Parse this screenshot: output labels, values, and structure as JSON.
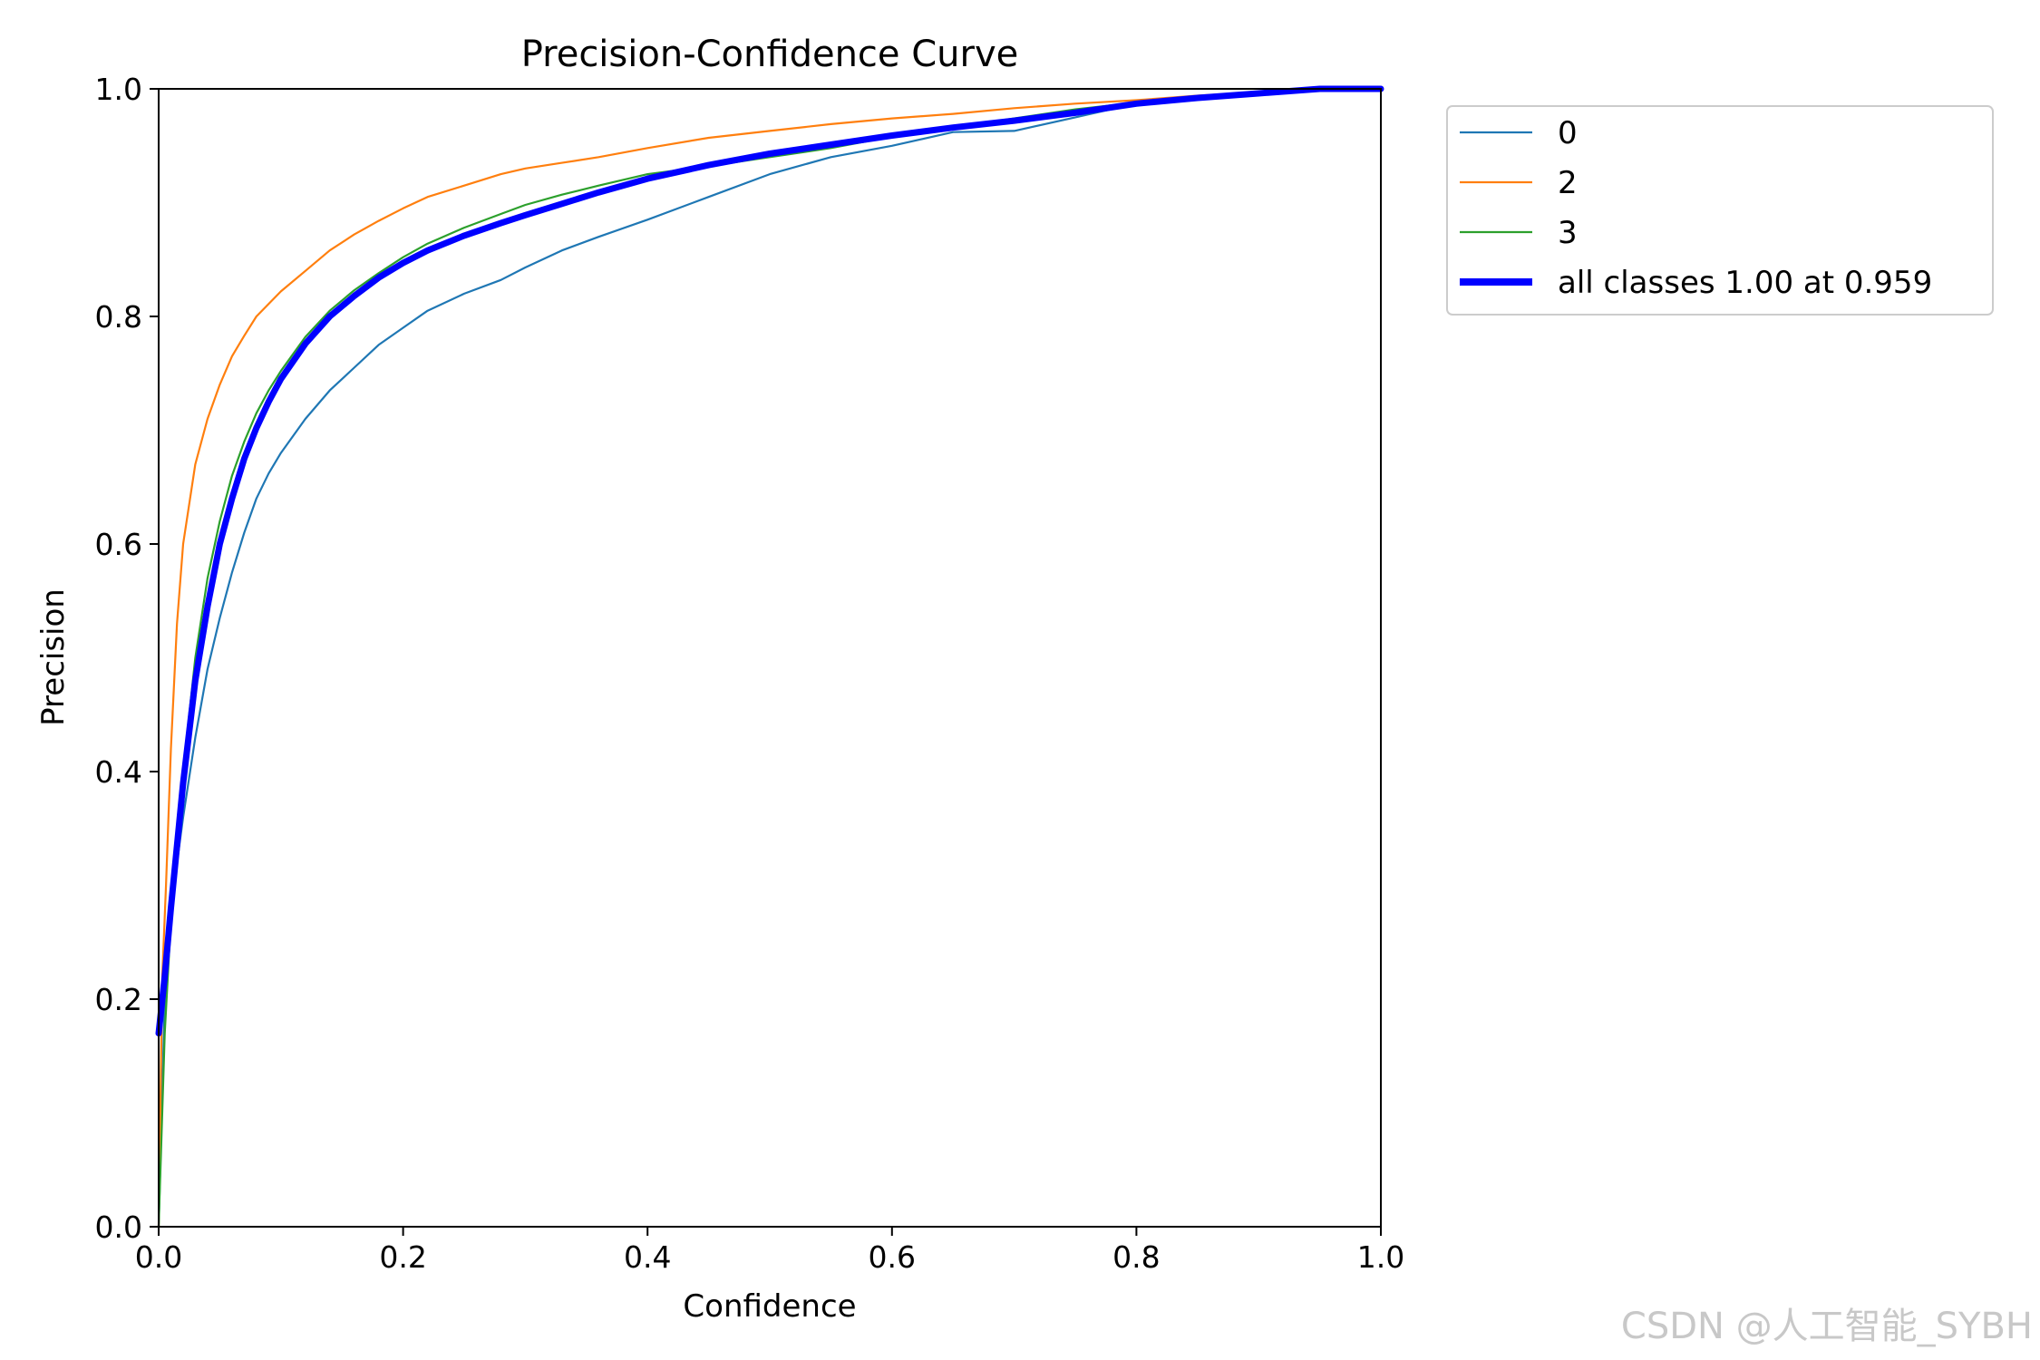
{
  "chart_data": {
    "type": "line",
    "title": "Precision-Confidence Curve",
    "xlabel": "Confidence",
    "ylabel": "Precision",
    "xlim": [
      0,
      1
    ],
    "ylim": [
      0,
      1
    ],
    "x_ticks": [
      "0.0",
      "0.2",
      "0.4",
      "0.6",
      "0.8",
      "1.0"
    ],
    "y_ticks": [
      "0.0",
      "0.2",
      "0.4",
      "0.6",
      "0.8",
      "1.0"
    ],
    "grid": false,
    "legend_position": "outside-top-right",
    "series": [
      {
        "name": "0",
        "color": "#1f77b4",
        "points": [
          [
            0.0,
            0.0
          ],
          [
            0.005,
            0.2
          ],
          [
            0.01,
            0.28
          ],
          [
            0.02,
            0.36
          ],
          [
            0.03,
            0.43
          ],
          [
            0.04,
            0.49
          ],
          [
            0.05,
            0.535
          ],
          [
            0.06,
            0.575
          ],
          [
            0.07,
            0.61
          ],
          [
            0.08,
            0.64
          ],
          [
            0.09,
            0.662
          ],
          [
            0.1,
            0.68
          ],
          [
            0.12,
            0.71
          ],
          [
            0.14,
            0.735
          ],
          [
            0.16,
            0.755
          ],
          [
            0.18,
            0.775
          ],
          [
            0.2,
            0.79
          ],
          [
            0.22,
            0.805
          ],
          [
            0.25,
            0.82
          ],
          [
            0.28,
            0.832
          ],
          [
            0.3,
            0.843
          ],
          [
            0.33,
            0.858
          ],
          [
            0.36,
            0.87
          ],
          [
            0.4,
            0.885
          ],
          [
            0.45,
            0.905
          ],
          [
            0.5,
            0.925
          ],
          [
            0.55,
            0.94
          ],
          [
            0.6,
            0.95
          ],
          [
            0.65,
            0.962
          ],
          [
            0.7,
            0.963
          ],
          [
            0.75,
            0.975
          ],
          [
            0.8,
            0.987
          ],
          [
            0.85,
            0.992
          ],
          [
            0.9,
            0.997
          ],
          [
            0.95,
            1.0
          ],
          [
            1.0,
            1.0
          ]
        ]
      },
      {
        "name": "2",
        "color": "#ff7f0e",
        "points": [
          [
            0.0,
            0.0
          ],
          [
            0.003,
            0.22
          ],
          [
            0.006,
            0.3
          ],
          [
            0.01,
            0.42
          ],
          [
            0.015,
            0.53
          ],
          [
            0.02,
            0.6
          ],
          [
            0.03,
            0.67
          ],
          [
            0.04,
            0.71
          ],
          [
            0.05,
            0.74
          ],
          [
            0.06,
            0.765
          ],
          [
            0.07,
            0.783
          ],
          [
            0.08,
            0.8
          ],
          [
            0.1,
            0.822
          ],
          [
            0.12,
            0.84
          ],
          [
            0.14,
            0.858
          ],
          [
            0.16,
            0.872
          ],
          [
            0.18,
            0.884
          ],
          [
            0.2,
            0.895
          ],
          [
            0.22,
            0.905
          ],
          [
            0.25,
            0.915
          ],
          [
            0.28,
            0.925
          ],
          [
            0.3,
            0.93
          ],
          [
            0.33,
            0.935
          ],
          [
            0.36,
            0.94
          ],
          [
            0.4,
            0.948
          ],
          [
            0.45,
            0.957
          ],
          [
            0.5,
            0.963
          ],
          [
            0.55,
            0.969
          ],
          [
            0.6,
            0.974
          ],
          [
            0.65,
            0.978
          ],
          [
            0.7,
            0.983
          ],
          [
            0.75,
            0.987
          ],
          [
            0.8,
            0.99
          ],
          [
            0.85,
            0.994
          ],
          [
            0.9,
            0.997
          ],
          [
            0.95,
            1.0
          ],
          [
            1.0,
            1.0
          ]
        ]
      },
      {
        "name": "3",
        "color": "#2ca02c",
        "points": [
          [
            0.0,
            0.0
          ],
          [
            0.005,
            0.17
          ],
          [
            0.01,
            0.27
          ],
          [
            0.02,
            0.4
          ],
          [
            0.03,
            0.5
          ],
          [
            0.04,
            0.57
          ],
          [
            0.05,
            0.62
          ],
          [
            0.06,
            0.66
          ],
          [
            0.07,
            0.69
          ],
          [
            0.08,
            0.715
          ],
          [
            0.09,
            0.735
          ],
          [
            0.1,
            0.752
          ],
          [
            0.12,
            0.782
          ],
          [
            0.14,
            0.805
          ],
          [
            0.16,
            0.823
          ],
          [
            0.18,
            0.838
          ],
          [
            0.2,
            0.852
          ],
          [
            0.22,
            0.864
          ],
          [
            0.25,
            0.878
          ],
          [
            0.28,
            0.89
          ],
          [
            0.3,
            0.898
          ],
          [
            0.33,
            0.907
          ],
          [
            0.36,
            0.915
          ],
          [
            0.4,
            0.925
          ],
          [
            0.45,
            0.932
          ],
          [
            0.5,
            0.94
          ],
          [
            0.55,
            0.948
          ],
          [
            0.6,
            0.958
          ],
          [
            0.65,
            0.966
          ],
          [
            0.7,
            0.974
          ],
          [
            0.75,
            0.982
          ],
          [
            0.8,
            0.988
          ],
          [
            0.85,
            0.993
          ],
          [
            0.9,
            0.997
          ],
          [
            0.95,
            1.0
          ],
          [
            1.0,
            1.0
          ]
        ]
      },
      {
        "name": "all classes 1.00 at 0.959",
        "color": "#0000ff",
        "points": [
          [
            0.0,
            0.17
          ],
          [
            0.005,
            0.22
          ],
          [
            0.01,
            0.28
          ],
          [
            0.02,
            0.39
          ],
          [
            0.03,
            0.48
          ],
          [
            0.04,
            0.545
          ],
          [
            0.05,
            0.6
          ],
          [
            0.06,
            0.64
          ],
          [
            0.07,
            0.675
          ],
          [
            0.08,
            0.702
          ],
          [
            0.09,
            0.725
          ],
          [
            0.1,
            0.745
          ],
          [
            0.12,
            0.776
          ],
          [
            0.14,
            0.8
          ],
          [
            0.16,
            0.818
          ],
          [
            0.18,
            0.834
          ],
          [
            0.2,
            0.847
          ],
          [
            0.22,
            0.858
          ],
          [
            0.25,
            0.871
          ],
          [
            0.28,
            0.882
          ],
          [
            0.3,
            0.889
          ],
          [
            0.33,
            0.899
          ],
          [
            0.36,
            0.909
          ],
          [
            0.4,
            0.921
          ],
          [
            0.45,
            0.933
          ],
          [
            0.5,
            0.943
          ],
          [
            0.55,
            0.951
          ],
          [
            0.6,
            0.959
          ],
          [
            0.65,
            0.966
          ],
          [
            0.7,
            0.972
          ],
          [
            0.75,
            0.979
          ],
          [
            0.8,
            0.987
          ],
          [
            0.85,
            0.992
          ],
          [
            0.9,
            0.996
          ],
          [
            0.95,
            1.0
          ],
          [
            1.0,
            1.0
          ]
        ]
      }
    ]
  },
  "watermark": "CSDN @人工智能_SYBH"
}
